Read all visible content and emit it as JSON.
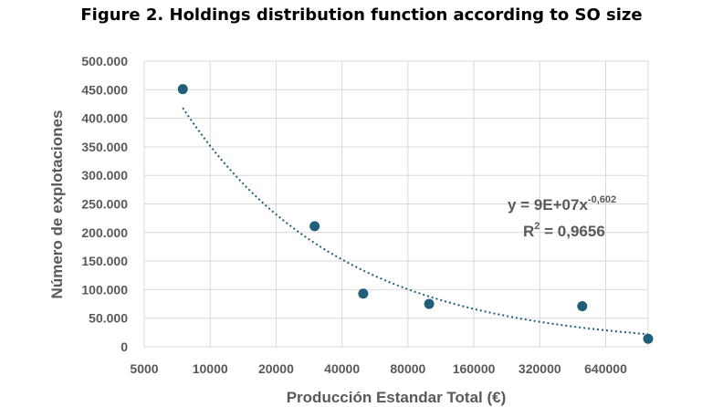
{
  "figure": {
    "title": "Figure 2. Holdings distribution function according to SO size"
  },
  "chart_data": {
    "type": "scatter",
    "xscale": "log2",
    "xlim": [
      5000,
      1000000
    ],
    "ylim": [
      0,
      500000
    ],
    "xticks": [
      5000,
      10000,
      20000,
      40000,
      80000,
      160000,
      320000,
      640000
    ],
    "xtick_labels": [
      "5000",
      "10000",
      "20000",
      "40000",
      "80000",
      "160000",
      "320000",
      "640000"
    ],
    "yticks": [
      0,
      50000,
      100000,
      150000,
      200000,
      250000,
      300000,
      350000,
      400000,
      450000,
      500000
    ],
    "ytick_labels": [
      "0",
      "50.000",
      "100.000",
      "150.000",
      "200.000",
      "250.000",
      "300.000",
      "350.000",
      "400.000",
      "450.000",
      "500.000"
    ],
    "xlabel": "Producción Estandar Total (€)",
    "ylabel": "Número de explotaciones",
    "grid": true,
    "points": [
      {
        "x": 7500,
        "y": 451000
      },
      {
        "x": 30000,
        "y": 211000
      },
      {
        "x": 50000,
        "y": 93000
      },
      {
        "x": 100000,
        "y": 75000
      },
      {
        "x": 500000,
        "y": 71000
      },
      {
        "x": 1000000,
        "y": 14000
      }
    ],
    "trendline": {
      "type": "power",
      "coef": 90000000,
      "exponent": -0.602,
      "x_from": 7500,
      "x_to": 1000000,
      "equation_base": "y = 9E+07x",
      "equation_exp": "-0,602",
      "r2_base": "R",
      "r2_sup": "2",
      "r2_value": " = 0,9656"
    },
    "colors": {
      "marker": "#1f5f7a",
      "trend": "#1f5f7a",
      "grid": "#d9d9d9",
      "text": "#595959"
    }
  }
}
